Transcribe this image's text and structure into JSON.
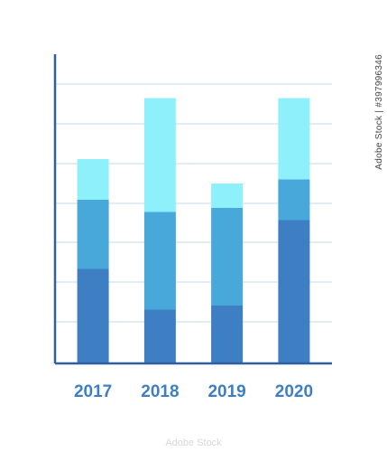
{
  "chart_data": {
    "type": "bar",
    "stacked": true,
    "categories": [
      "2017",
      "2018",
      "2019",
      "2020"
    ],
    "series": [
      {
        "values": [
          23,
          13,
          14,
          35
        ],
        "color": "#3e7fc4"
      },
      {
        "values": [
          17,
          24,
          24,
          10
        ],
        "color": "#48a8d9"
      },
      {
        "values": [
          10,
          28,
          6,
          20
        ],
        "color": "#8ef0fb"
      }
    ],
    "ylim": [
      0,
      78
    ],
    "grid": true,
    "axis_color": "#2e5f9e",
    "grid_color": "#c6d9ea",
    "tick_label_color": "#3e7fc4"
  },
  "watermark": {
    "stock_id": "Adobe Stock | #397996346",
    "brand": "Adobe Stock"
  }
}
